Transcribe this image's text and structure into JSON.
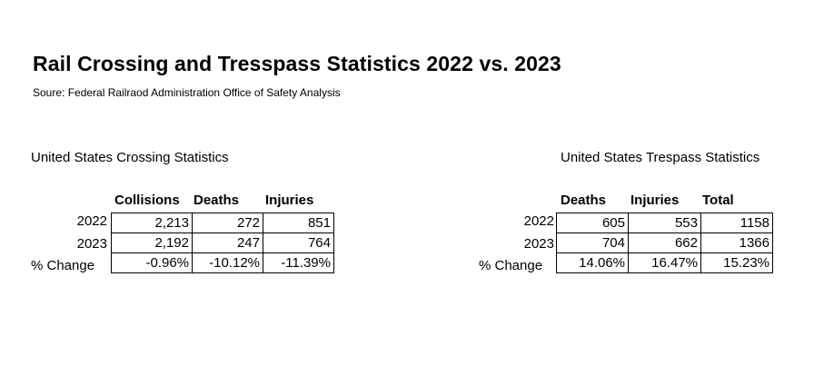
{
  "title": "Rail Crossing and Tresspass Statistics 2022 vs. 2023",
  "source": "Soure: Federal Railraod Administration Office of Safety Analysis",
  "crossing": {
    "heading": "United States Crossing Statistics",
    "columns": [
      "Collisions",
      "Deaths",
      "Injuries"
    ],
    "rows": [
      {
        "label": "2022",
        "values": [
          "2,213",
          "272",
          "851"
        ]
      },
      {
        "label": "2023",
        "values": [
          "2,192",
          "247",
          "764"
        ]
      },
      {
        "label": "% Change",
        "values": [
          "-0.96%",
          "-10.12%",
          "-11.39%"
        ]
      }
    ]
  },
  "trespass": {
    "heading": "United States Trespass Statistics",
    "columns": [
      "Deaths",
      "Injuries",
      "Total"
    ],
    "rows": [
      {
        "label": "2022",
        "values": [
          "605",
          "553",
          "1158"
        ]
      },
      {
        "label": "2023",
        "values": [
          "704",
          "662",
          "1366"
        ]
      },
      {
        "label": "% Change",
        "values": [
          "14.06%",
          "16.47%",
          "15.23%"
        ]
      }
    ]
  }
}
